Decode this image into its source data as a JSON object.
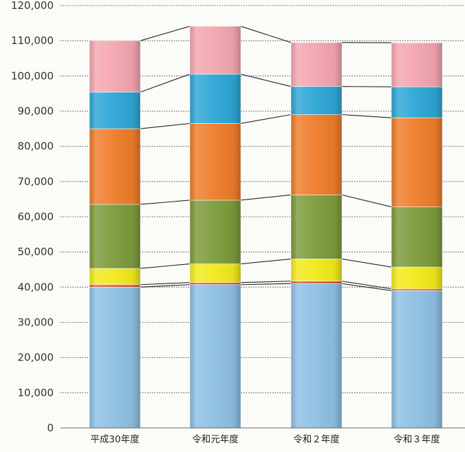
{
  "chart_data": {
    "type": "bar",
    "stacked": true,
    "categories": [
      "平成30年度",
      "令和元年度",
      "令和２年度",
      "令和３年度"
    ],
    "series": [
      {
        "color": "#8ec0e4",
        "values": [
          40000,
          40700,
          41000,
          39000
        ]
      },
      {
        "color": "#d9534f",
        "values": [
          700,
          600,
          700,
          500
        ]
      },
      {
        "color": "#f2ea1c",
        "values": [
          4600,
          5300,
          6300,
          6200
        ]
      },
      {
        "color": "#7d9b3b",
        "values": [
          18200,
          18100,
          18200,
          17100
        ]
      },
      {
        "color": "#ef7d2a",
        "values": [
          21500,
          21800,
          22800,
          25300
        ]
      },
      {
        "color": "#2ea6d6",
        "values": [
          10400,
          14000,
          8000,
          8800
        ]
      },
      {
        "color": "#f4a6b0",
        "values": [
          14600,
          13600,
          12500,
          12500
        ]
      }
    ],
    "y_ticks": [
      "0",
      "10,000",
      "20,000",
      "30,000",
      "40,000",
      "50,000",
      "60,000",
      "70,000",
      "80,000",
      "90,000",
      "100,000",
      "110,000",
      "120,000"
    ],
    "ylim": [
      0,
      120000
    ],
    "grid": true,
    "grid_style": "dotted",
    "connector_lines": true,
    "title": "",
    "xlabel": "",
    "ylabel": ""
  }
}
